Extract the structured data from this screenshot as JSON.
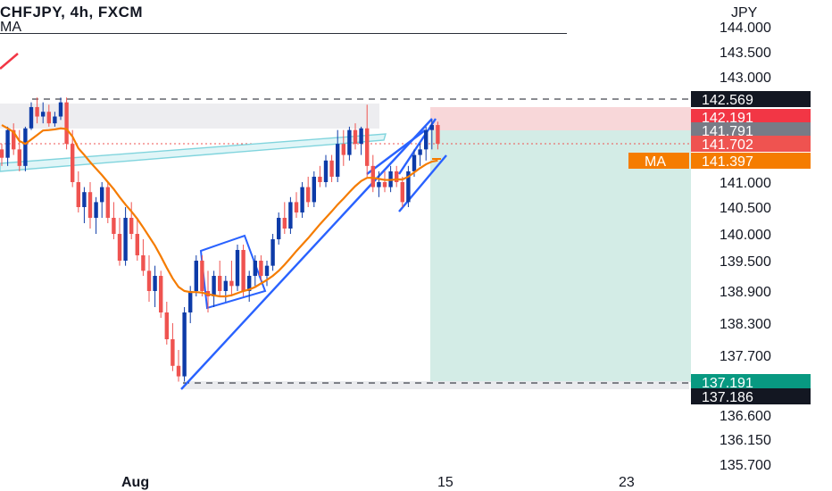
{
  "header": {
    "symbol_line": "CHFJPY, 4h, FXCM",
    "indicator": "MA"
  },
  "chart_data": {
    "type": "candlestick",
    "symbol": "CHFJPY",
    "timeframe": "4h",
    "source": "FXCM",
    "currency_label": "JPY",
    "y_ticks": [
      "144.000",
      "143.500",
      "143.000",
      "141.000",
      "140.500",
      "140.000",
      "139.500",
      "138.900",
      "138.300",
      "137.700",
      "136.600",
      "136.150",
      "135.700"
    ],
    "x_ticks": [
      "Aug",
      "15",
      "23"
    ],
    "price_tags": [
      {
        "label": "",
        "value": "142.569",
        "bg": "#131722",
        "color": "#ffffff"
      },
      {
        "label": "",
        "value": "142.191",
        "bg": "#f23645",
        "color": "#ffffff"
      },
      {
        "label": "",
        "value": "141.791",
        "bg": "#787b86",
        "color": "#ffffff"
      },
      {
        "label": "",
        "value": "141.702",
        "bg": "#ef5350",
        "color": "#ffffff"
      },
      {
        "label": "MA",
        "value": "141.397",
        "bg": "#f57c00",
        "color": "#ffffff"
      },
      {
        "label": "",
        "value": "137.191",
        "bg": "#089981",
        "color": "#ffffff"
      },
      {
        "label": "",
        "value": "137.186",
        "bg": "#131722",
        "color": "#ffffff"
      }
    ],
    "position": {
      "entry": 141.791,
      "stop": 142.191,
      "target": 137.191
    },
    "levels": {
      "resistance": 142.569,
      "support": 137.186
    },
    "colors": {
      "up": "#0d3ba8",
      "down": "#ef5350",
      "ma": "#f57c00",
      "trend": "#2962ff",
      "profit_zone": "#d3ece6",
      "loss_zone": "#f8d7d9"
    },
    "ohlc": [
      [
        141.6,
        141.7,
        141.3,
        141.45
      ],
      [
        141.45,
        141.9,
        141.3,
        141.8
      ],
      [
        141.8,
        142.0,
        141.5,
        141.6
      ],
      [
        141.6,
        141.8,
        141.2,
        141.3
      ],
      [
        141.3,
        141.9,
        141.2,
        141.85
      ],
      [
        141.85,
        142.5,
        141.8,
        142.4
      ],
      [
        142.4,
        142.6,
        142.0,
        142.2
      ],
      [
        142.2,
        142.5,
        142.0,
        142.3
      ],
      [
        142.3,
        142.45,
        141.9,
        142.0
      ],
      [
        142.0,
        142.3,
        141.9,
        142.2
      ],
      [
        142.2,
        142.6,
        142.1,
        142.5
      ],
      [
        142.5,
        142.6,
        141.6,
        141.7
      ],
      [
        141.7,
        141.8,
        140.9,
        141.0
      ],
      [
        141.0,
        141.2,
        140.4,
        140.5
      ],
      [
        140.5,
        140.9,
        140.2,
        140.8
      ],
      [
        140.8,
        141.0,
        140.1,
        140.3
      ],
      [
        140.3,
        140.7,
        140.0,
        140.6
      ],
      [
        140.6,
        141.0,
        140.3,
        140.9
      ],
      [
        140.9,
        141.0,
        140.2,
        140.3
      ],
      [
        140.3,
        140.6,
        139.9,
        140.0
      ],
      [
        140.0,
        140.3,
        139.4,
        139.5
      ],
      [
        139.5,
        140.5,
        139.4,
        140.3
      ],
      [
        140.3,
        140.6,
        139.9,
        140.0
      ],
      [
        140.0,
        140.3,
        139.5,
        139.6
      ],
      [
        139.6,
        139.9,
        139.2,
        139.3
      ],
      [
        139.3,
        139.6,
        138.7,
        138.9
      ],
      [
        138.9,
        139.4,
        138.6,
        139.2
      ],
      [
        139.2,
        139.3,
        138.4,
        138.5
      ],
      [
        138.5,
        138.7,
        137.9,
        138.0
      ],
      [
        138.0,
        138.3,
        137.4,
        137.5
      ],
      [
        137.5,
        137.8,
        137.2,
        137.3
      ],
      [
        137.3,
        138.6,
        137.2,
        138.5
      ],
      [
        138.5,
        139.0,
        138.3,
        138.9
      ],
      [
        138.9,
        139.6,
        138.8,
        139.5
      ],
      [
        139.5,
        139.6,
        138.8,
        138.9
      ],
      [
        138.9,
        139.3,
        138.5,
        138.8
      ],
      [
        138.8,
        139.3,
        138.6,
        139.2
      ],
      [
        139.2,
        139.5,
        138.8,
        138.9
      ],
      [
        138.9,
        139.2,
        138.7,
        139.1
      ],
      [
        139.1,
        139.5,
        138.8,
        139.0
      ],
      [
        139.0,
        139.8,
        138.9,
        139.7
      ],
      [
        139.7,
        139.8,
        138.8,
        138.9
      ],
      [
        138.9,
        139.3,
        138.7,
        139.2
      ],
      [
        139.2,
        139.6,
        139.0,
        139.5
      ],
      [
        139.5,
        139.6,
        139.1,
        139.2
      ],
      [
        139.2,
        139.5,
        139.0,
        139.4
      ],
      [
        139.4,
        140.0,
        139.3,
        139.9
      ],
      [
        139.9,
        140.4,
        139.8,
        140.3
      ],
      [
        140.3,
        140.6,
        140.0,
        140.1
      ],
      [
        140.1,
        140.7,
        140.0,
        140.6
      ],
      [
        140.6,
        140.8,
        140.3,
        140.4
      ],
      [
        140.4,
        141.0,
        140.3,
        140.9
      ],
      [
        140.9,
        141.1,
        140.5,
        140.6
      ],
      [
        140.6,
        141.2,
        140.5,
        141.1
      ],
      [
        141.1,
        141.3,
        140.9,
        141.0
      ],
      [
        141.0,
        141.5,
        140.9,
        141.4
      ],
      [
        141.4,
        141.5,
        141.0,
        141.1
      ],
      [
        141.1,
        141.8,
        141.0,
        141.7
      ],
      [
        141.7,
        141.8,
        141.3,
        141.5
      ],
      [
        141.5,
        141.9,
        141.4,
        141.8
      ],
      [
        141.8,
        142.0,
        141.6,
        141.7
      ],
      [
        141.7,
        141.9,
        141.5,
        141.85
      ],
      [
        141.85,
        142.45,
        141.1,
        141.3
      ],
      [
        141.3,
        141.5,
        140.8,
        140.9
      ],
      [
        140.9,
        141.2,
        140.7,
        141.0
      ],
      [
        141.0,
        141.2,
        140.8,
        140.9
      ],
      [
        140.9,
        141.3,
        140.8,
        141.2
      ],
      [
        141.2,
        141.3,
        140.9,
        141.0
      ],
      [
        141.0,
        141.1,
        140.5,
        140.6
      ],
      [
        140.6,
        141.3,
        140.5,
        141.2
      ],
      [
        141.2,
        141.6,
        141.1,
        141.5
      ],
      [
        141.5,
        141.7,
        141.3,
        141.6
      ],
      [
        141.6,
        141.9,
        141.4,
        141.8
      ],
      [
        141.8,
        142.1,
        141.6,
        141.95
      ],
      [
        141.95,
        142.05,
        141.6,
        141.7
      ]
    ],
    "ma": [
      141.95,
      141.85,
      141.78,
      141.72,
      141.7,
      141.73,
      141.76,
      141.79,
      141.8,
      141.82,
      141.85,
      141.83,
      141.75,
      141.62,
      141.5,
      141.37,
      141.25,
      141.13,
      141.0,
      140.86,
      140.7,
      140.55,
      140.42,
      140.28,
      140.12,
      139.95,
      139.78,
      139.58,
      139.36,
      139.15,
      138.98,
      138.9,
      138.88,
      138.88,
      138.87,
      138.84,
      138.82,
      138.8,
      138.8,
      138.82,
      138.86,
      138.9,
      138.93,
      138.98,
      139.05,
      139.12,
      139.2,
      139.3,
      139.42,
      139.55,
      139.68,
      139.8,
      139.92,
      140.05,
      140.18,
      140.3,
      140.42,
      140.55,
      140.67,
      140.8,
      140.92,
      141.02,
      141.08,
      141.08,
      141.06,
      141.04,
      141.04,
      141.05,
      141.05,
      141.1,
      141.18,
      141.26,
      141.33,
      141.38,
      141.4
    ]
  }
}
